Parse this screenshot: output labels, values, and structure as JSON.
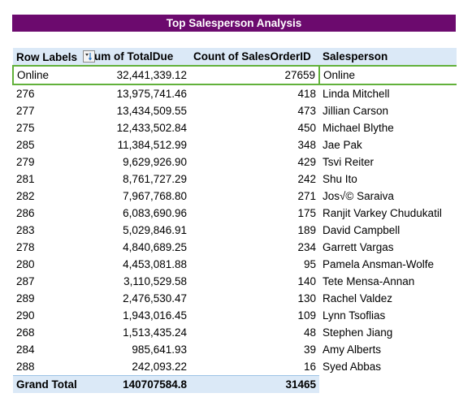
{
  "title": "Top Salesperson Analysis",
  "headers": {
    "row_labels": "Row Labels",
    "sum_total_due": "Sum of TotalDue",
    "count_orders": "Count of SalesOrderID",
    "salesperson": "Salesperson"
  },
  "rows": [
    {
      "label": "Online",
      "total_due": "32,441,339.12",
      "count": "27659",
      "salesperson": "Online"
    },
    {
      "label": "276",
      "total_due": "13,975,741.46",
      "count": "418",
      "salesperson": "Linda Mitchell"
    },
    {
      "label": "277",
      "total_due": "13,434,509.55",
      "count": "473",
      "salesperson": "Jillian Carson"
    },
    {
      "label": "275",
      "total_due": "12,433,502.84",
      "count": "450",
      "salesperson": "Michael Blythe"
    },
    {
      "label": "285",
      "total_due": "11,384,512.99",
      "count": "348",
      "salesperson": "Jae Pak"
    },
    {
      "label": "279",
      "total_due": "9,629,926.90",
      "count": "429",
      "salesperson": "Tsvi Reiter"
    },
    {
      "label": "281",
      "total_due": "8,761,727.29",
      "count": "242",
      "salesperson": "Shu Ito"
    },
    {
      "label": "282",
      "total_due": "7,967,768.80",
      "count": "271",
      "salesperson": "Jos√© Saraiva"
    },
    {
      "label": "286",
      "total_due": "6,083,690.96",
      "count": "175",
      "salesperson": "Ranjit Varkey Chudukatil"
    },
    {
      "label": "283",
      "total_due": "5,029,846.91",
      "count": "189",
      "salesperson": "David Campbell"
    },
    {
      "label": "278",
      "total_due": "4,840,689.25",
      "count": "234",
      "salesperson": "Garrett Vargas"
    },
    {
      "label": "280",
      "total_due": "4,453,081.88",
      "count": "95",
      "salesperson": "Pamela Ansman-Wolfe"
    },
    {
      "label": "287",
      "total_due": "3,110,529.58",
      "count": "140",
      "salesperson": "Tete Mensa-Annan"
    },
    {
      "label": "289",
      "total_due": "2,476,530.47",
      "count": "130",
      "salesperson": "Rachel Valdez"
    },
    {
      "label": "290",
      "total_due": "1,943,016.45",
      "count": "109",
      "salesperson": "Lynn Tsoflias"
    },
    {
      "label": "268",
      "total_due": "1,513,435.24",
      "count": "48",
      "salesperson": "Stephen Jiang"
    },
    {
      "label": "284",
      "total_due": "985,641.93",
      "count": "39",
      "salesperson": "Amy Alberts"
    },
    {
      "label": "288",
      "total_due": "242,093.22",
      "count": "16",
      "salesperson": "Syed Abbas"
    }
  ],
  "grand_total": {
    "label": "Grand Total",
    "total_due": "140707584.8",
    "count": "31465"
  },
  "colors": {
    "title_bg": "#6c0a6e",
    "header_bg": "#dbe9f7",
    "highlight_border": "#62b13b"
  },
  "icons": {
    "sort_filter": "sort-descending-filter-icon"
  }
}
